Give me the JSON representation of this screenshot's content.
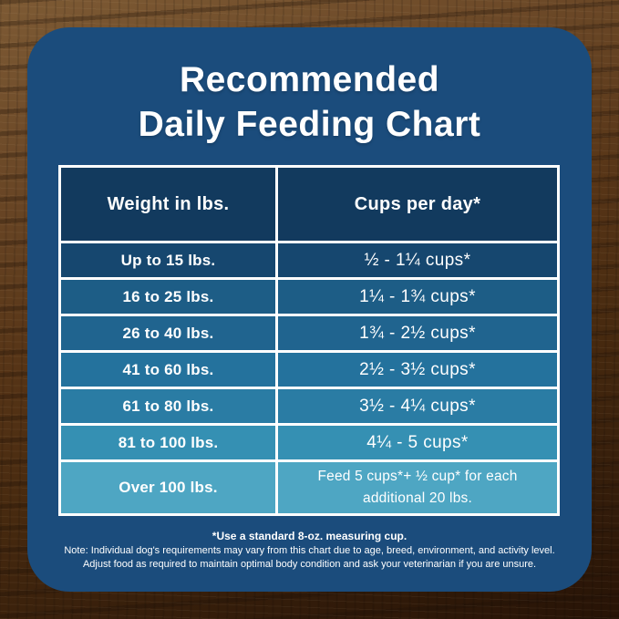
{
  "colors": {
    "panel_blue": "#1b4c7c",
    "header_navy": "#123a5e",
    "cell_border_white": "#ffffff",
    "text_white": "#ffffff",
    "wood_light": "#7d5a34",
    "wood_dark": "#271306",
    "row_colors": [
      "#16476f",
      "#1d5d86",
      "#20648f",
      "#24729d",
      "#2a7ca4",
      "#3590b3",
      "#4ea6c3"
    ]
  },
  "title": {
    "line1": "Recommended",
    "line2": "Daily Feeding Chart"
  },
  "table": {
    "headers": [
      "Weight in lbs.",
      "Cups per day*"
    ],
    "rows": [
      {
        "weight": "Up to 15 lbs.",
        "cups": "½ - 1¼ cups*"
      },
      {
        "weight": "16 to 25 lbs.",
        "cups": "1¼ - 1¾  cups*"
      },
      {
        "weight": "26 to 40 lbs.",
        "cups": "1¾ - 2½ cups*"
      },
      {
        "weight": "41 to 60 lbs.",
        "cups": "2½ - 3½ cups*"
      },
      {
        "weight": "61 to 80 lbs.",
        "cups": "3½ - 4¼ cups*"
      },
      {
        "weight": "81 to 100 lbs.",
        "cups": "4¼ - 5 cups*"
      },
      {
        "weight": "Over 100 lbs.",
        "cups": "Feed 5 cups*+ ½ cup* for each\nadditional 20 lbs."
      }
    ]
  },
  "footnotes": {
    "line1": "*Use a standard 8-oz. measuring cup.",
    "line2": "Note: Individual dog's requirements may vary from this chart due to age, breed, environment, and activity level.",
    "line3": "Adjust food as required to maintain optimal body condition and ask your veterinarian if you are unsure."
  },
  "chart_data": {
    "type": "table",
    "title": "Recommended Daily Feeding Chart",
    "columns": [
      "Weight in lbs.",
      "Cups per day*"
    ],
    "rows": [
      [
        "Up to 15 lbs.",
        "½ - 1¼ cups*"
      ],
      [
        "16 to 25 lbs.",
        "1¼ - 1¾ cups*"
      ],
      [
        "26 to 40 lbs.",
        "1¾ - 2½ cups*"
      ],
      [
        "41 to 60 lbs.",
        "2½ - 3½ cups*"
      ],
      [
        "61 to 80 lbs.",
        "3½ - 4¼ cups*"
      ],
      [
        "81 to 100 lbs.",
        "4¼ - 5 cups*"
      ],
      [
        "Over 100 lbs.",
        "Feed 5 cups*+ ½ cup* for each additional 20 lbs."
      ]
    ],
    "notes": [
      "*Use a standard 8-oz. measuring cup.",
      "Note: Individual dog's requirements may vary from this chart due to age, breed, environment, and activity level.",
      "Adjust food as required to maintain optimal body condition and ask your veterinarian if you are unsure."
    ],
    "row_background_gradient": [
      "#16476f",
      "#1d5d86",
      "#20648f",
      "#24729d",
      "#2a7ca4",
      "#3590b3",
      "#4ea6c3"
    ]
  }
}
